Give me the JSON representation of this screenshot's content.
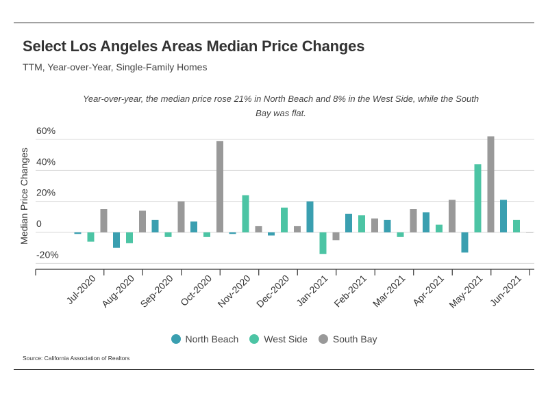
{
  "header": {
    "title": "Select Los Angeles Areas Median Price Changes",
    "subtitle": "TTM, Year-over-Year, Single-Family Homes"
  },
  "annotation": "Year-over-year, the median price rose 21% in North Beach and 8% in the West Side, while the South Bay was flat.",
  "source": "Source:  California Association of Realtors",
  "colors": {
    "north_beach": "#3a9fb0",
    "west_side": "#4cc4a4",
    "south_bay": "#999999",
    "grid": "#d9d9d9",
    "axis": "#333333"
  },
  "chart_data": {
    "type": "bar",
    "ylabel": "Median Price Changes",
    "xlabel": "",
    "ylim": [
      -20,
      60
    ],
    "yticks": [
      {
        "value": -20,
        "label": "-20%"
      },
      {
        "value": 0,
        "label": "0"
      },
      {
        "value": 20,
        "label": "20%"
      },
      {
        "value": 40,
        "label": "40%"
      },
      {
        "value": 60,
        "label": "60%"
      }
    ],
    "grid": true,
    "legend_position": "bottom",
    "categories": [
      "Jul-2020",
      "Aug-2020",
      "Sep-2020",
      "Oct-2020",
      "Nov-2020",
      "Dec-2020",
      "Jan-2021",
      "Feb-2021",
      "Mar-2021",
      "Apr-2021",
      "May-2021",
      "Jun-2021"
    ],
    "series": [
      {
        "name": "North Beach",
        "color": "#3a9fb0",
        "values": [
          -1,
          -10,
          8,
          7,
          -1,
          -2,
          20,
          12,
          8,
          13,
          -13,
          21
        ]
      },
      {
        "name": "West Side",
        "color": "#4cc4a4",
        "values": [
          -6,
          -7,
          -3,
          -3,
          24,
          16,
          -14,
          11,
          -3,
          5,
          44,
          8
        ]
      },
      {
        "name": "South Bay",
        "color": "#999999",
        "values": [
          15,
          14,
          20,
          59,
          4,
          4,
          -5,
          9,
          15,
          21,
          62,
          0
        ]
      }
    ]
  }
}
